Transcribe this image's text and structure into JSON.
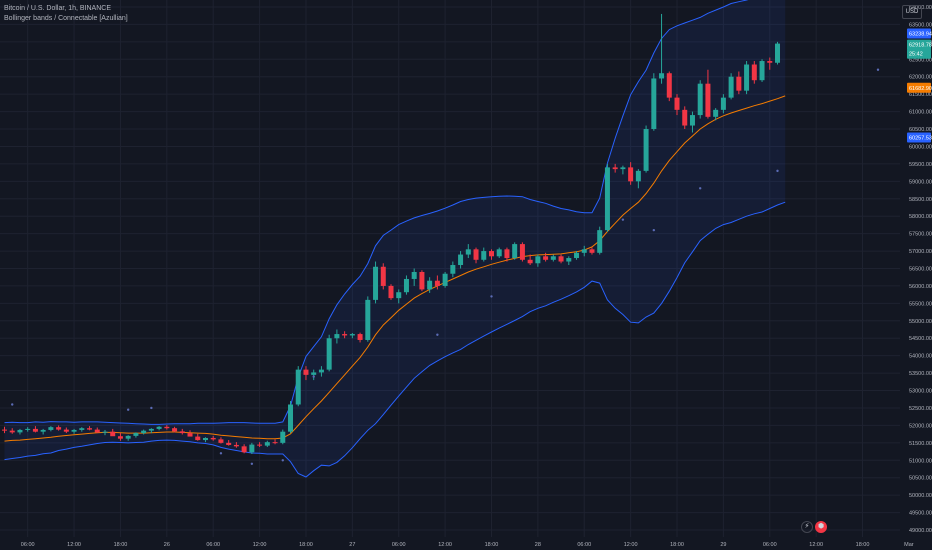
{
  "legend": {
    "title": "Bitcoin / U.S. Dollar, 1h, BINANCE",
    "indicator": "Bollinger bands / Connectable [Azullian]"
  },
  "currency": "USD",
  "controls": {
    "flash_glyph": "⚡",
    "logo_glyph": "⬢"
  },
  "colors": {
    "up": "#26a69a",
    "down": "#f23645",
    "band": "#2962ff",
    "basis": "#f57c00",
    "fill": "#2962ff",
    "dots": "#5b6bb5",
    "grid": "#1e2230"
  },
  "chart_data": {
    "type": "candlestick",
    "ylim": [
      48800,
      64200
    ],
    "y_ticks": [
      49000,
      49500,
      50000,
      50500,
      51000,
      51500,
      52000,
      52500,
      53000,
      53500,
      54000,
      54500,
      55000,
      55500,
      56000,
      56500,
      57000,
      57500,
      58000,
      58500,
      59000,
      59500,
      60000,
      60500,
      61000,
      61500,
      62000,
      62500,
      63000,
      63500,
      64000
    ],
    "y_tick_labels": [
      "49000.00",
      "49500.00",
      "50000.00",
      "50500.00",
      "51000.00",
      "51500.00",
      "52000.00",
      "52500.00",
      "53000.00",
      "53500.00",
      "54000.00",
      "54500.00",
      "55000.00",
      "55500.00",
      "56000.00",
      "56500.00",
      "57000.00",
      "57500.00",
      "58000.00",
      "58500.00",
      "59000.00",
      "59500.00",
      "60000.00",
      "60500.00",
      "61000.00",
      "61500.00",
      "62000.00",
      "62500.00",
      "63000.00",
      "63500.00",
      "64000.00"
    ],
    "x_labels": [
      {
        "label": "06:00",
        "bar": 3
      },
      {
        "label": "12:00",
        "bar": 9
      },
      {
        "label": "18:00",
        "bar": 15
      },
      {
        "label": "26",
        "bar": 21
      },
      {
        "label": "06:00",
        "bar": 27
      },
      {
        "label": "12:00",
        "bar": 33
      },
      {
        "label": "18:00",
        "bar": 39
      },
      {
        "label": "27",
        "bar": 45
      },
      {
        "label": "06:00",
        "bar": 51
      },
      {
        "label": "12:00",
        "bar": 57
      },
      {
        "label": "18:00",
        "bar": 63
      },
      {
        "label": "28",
        "bar": 69
      },
      {
        "label": "06:00",
        "bar": 75
      },
      {
        "label": "12:00",
        "bar": 81
      },
      {
        "label": "18:00",
        "bar": 87
      },
      {
        "label": "29",
        "bar": 93
      },
      {
        "label": "06:00",
        "bar": 99
      },
      {
        "label": "12:00",
        "bar": 105
      },
      {
        "label": "18:00",
        "bar": 111
      },
      {
        "label": "Mar",
        "bar": 117
      }
    ],
    "candles_ohlc": [
      [
        51880,
        51960,
        51780,
        51850
      ],
      [
        51850,
        51920,
        51760,
        51800
      ],
      [
        51800,
        51900,
        51740,
        51870
      ],
      [
        51870,
        51950,
        51820,
        51900
      ],
      [
        51900,
        51980,
        51800,
        51820
      ],
      [
        51820,
        51900,
        51740,
        51870
      ],
      [
        51870,
        51980,
        51830,
        51950
      ],
      [
        51950,
        52000,
        51850,
        51880
      ],
      [
        51880,
        51940,
        51780,
        51820
      ],
      [
        51820,
        51900,
        51760,
        51870
      ],
      [
        51870,
        51950,
        51820,
        51920
      ],
      [
        51920,
        51980,
        51860,
        51880
      ],
      [
        51880,
        51940,
        51780,
        51800
      ],
      [
        51800,
        51870,
        51720,
        51820
      ],
      [
        51820,
        51900,
        51760,
        51690
      ],
      [
        51690,
        51780,
        51560,
        51620
      ],
      [
        51620,
        51720,
        51560,
        51700
      ],
      [
        51700,
        51800,
        51650,
        51780
      ],
      [
        51780,
        51880,
        51740,
        51850
      ],
      [
        51850,
        51920,
        51780,
        51900
      ],
      [
        51900,
        51980,
        51860,
        51960
      ],
      [
        51960,
        52010,
        51880,
        51920
      ],
      [
        51920,
        51960,
        51800,
        51830
      ],
      [
        51830,
        51900,
        51740,
        51780
      ],
      [
        51780,
        51860,
        51700,
        51680
      ],
      [
        51680,
        51760,
        51560,
        51580
      ],
      [
        51580,
        51660,
        51520,
        51640
      ],
      [
        51640,
        51700,
        51560,
        51600
      ],
      [
        51600,
        51660,
        51480,
        51500
      ],
      [
        51500,
        51580,
        51420,
        51440
      ],
      [
        51440,
        51520,
        51360,
        51400
      ],
      [
        51400,
        51460,
        51200,
        51230
      ],
      [
        51230,
        51500,
        51180,
        51450
      ],
      [
        51450,
        51520,
        51380,
        51420
      ],
      [
        51420,
        51560,
        51380,
        51520
      ],
      [
        51520,
        51600,
        51460,
        51500
      ],
      [
        51500,
        51880,
        51460,
        51820
      ],
      [
        51820,
        52700,
        51780,
        52600
      ],
      [
        52600,
        53700,
        52550,
        53600
      ],
      [
        53600,
        53700,
        53300,
        53450
      ],
      [
        53450,
        53600,
        53300,
        53520
      ],
      [
        53520,
        53700,
        53400,
        53600
      ],
      [
        53600,
        54600,
        53550,
        54500
      ],
      [
        54500,
        54750,
        54350,
        54620
      ],
      [
        54620,
        54700,
        54500,
        54580
      ],
      [
        54580,
        54650,
        54500,
        54620
      ],
      [
        54620,
        54660,
        54380,
        54450
      ],
      [
        54450,
        55700,
        54400,
        55600
      ],
      [
        55600,
        56700,
        55500,
        56550
      ],
      [
        56550,
        56650,
        55900,
        56000
      ],
      [
        56000,
        56050,
        55600,
        55650
      ],
      [
        55650,
        55900,
        55500,
        55820
      ],
      [
        55820,
        56300,
        55750,
        56200
      ],
      [
        56200,
        56500,
        56000,
        56400
      ],
      [
        56400,
        56450,
        55850,
        55900
      ],
      [
        55900,
        56250,
        55800,
        56150
      ],
      [
        56150,
        56300,
        55900,
        56000
      ],
      [
        56000,
        56400,
        55950,
        56350
      ],
      [
        56350,
        56700,
        56250,
        56600
      ],
      [
        56600,
        57000,
        56500,
        56900
      ],
      [
        56900,
        57200,
        56800,
        57050
      ],
      [
        57050,
        57100,
        56650,
        56750
      ],
      [
        56750,
        57100,
        56700,
        57000
      ],
      [
        57000,
        57050,
        56750,
        56850
      ],
      [
        56850,
        57100,
        56800,
        57050
      ],
      [
        57050,
        57100,
        56700,
        56800
      ],
      [
        56800,
        57250,
        56750,
        57200
      ],
      [
        57200,
        57250,
        56700,
        56750
      ],
      [
        56750,
        56900,
        56600,
        56650
      ],
      [
        56650,
        56900,
        56550,
        56850
      ],
      [
        56850,
        56950,
        56700,
        56750
      ],
      [
        56750,
        56900,
        56700,
        56850
      ],
      [
        56850,
        56900,
        56650,
        56700
      ],
      [
        56700,
        56850,
        56600,
        56800
      ],
      [
        56800,
        57000,
        56750,
        56950
      ],
      [
        56950,
        57150,
        56850,
        57050
      ],
      [
        57050,
        57100,
        56900,
        56950
      ],
      [
        56950,
        57700,
        56900,
        57600
      ],
      [
        57600,
        59500,
        57550,
        59400
      ],
      [
        59400,
        59500,
        59250,
        59350
      ],
      [
        59350,
        59450,
        59200,
        59400
      ],
      [
        59400,
        59550,
        58900,
        59000
      ],
      [
        59000,
        59350,
        58800,
        59300
      ],
      [
        59300,
        60600,
        59250,
        60500
      ],
      [
        60500,
        62100,
        60450,
        61950
      ],
      [
        61950,
        63800,
        61800,
        62100
      ],
      [
        62100,
        62150,
        61300,
        61400
      ],
      [
        61400,
        61500,
        60900,
        61050
      ],
      [
        61050,
        61150,
        60500,
        60600
      ],
      [
        60600,
        61000,
        60400,
        60900
      ],
      [
        60900,
        61900,
        60800,
        61800
      ],
      [
        61800,
        62200,
        60800,
        60850
      ],
      [
        60850,
        61100,
        60750,
        61050
      ],
      [
        61050,
        61500,
        60950,
        61400
      ],
      [
        61400,
        62100,
        61350,
        62000
      ],
      [
        62000,
        62150,
        61500,
        61600
      ],
      [
        61600,
        62450,
        61500,
        62350
      ],
      [
        62350,
        62450,
        61800,
        61900
      ],
      [
        61900,
        62500,
        61850,
        62450
      ],
      [
        62450,
        62550,
        62200,
        62400
      ],
      [
        62400,
        63000,
        62350,
        62950
      ]
    ],
    "bollinger": {
      "upper": [
        52080,
        52090,
        52080,
        52080,
        52100,
        52090,
        52110,
        52100,
        52100,
        52090,
        52100,
        52100,
        52100,
        52090,
        52080,
        52070,
        52060,
        52050,
        52040,
        52030,
        52030,
        52040,
        52050,
        52050,
        52050,
        52060,
        52060,
        52060,
        52070,
        52080,
        52080,
        52080,
        52070,
        52060,
        52060,
        52060,
        52100,
        52560,
        53380,
        53980,
        54260,
        54540,
        55060,
        55460,
        55770,
        56040,
        56280,
        56640,
        57150,
        57450,
        57600,
        57760,
        57860,
        57950,
        58020,
        58080,
        58150,
        58230,
        58320,
        58420,
        58480,
        58520,
        58540,
        58560,
        58570,
        58580,
        58570,
        58560,
        58480,
        58420,
        58370,
        58290,
        58220,
        58180,
        58130,
        58100,
        58100,
        58520,
        59520,
        60240,
        60880,
        61480,
        61860,
        62190,
        62680,
        63100,
        63350,
        63460,
        63540,
        63620,
        63700,
        63820,
        63910,
        64000,
        64100,
        64150,
        64200,
        64270,
        64340,
        64380,
        64420,
        64500
      ],
      "basis": [
        51550,
        51570,
        51580,
        51600,
        51620,
        51640,
        51660,
        51690,
        51710,
        51730,
        51750,
        51770,
        51790,
        51800,
        51800,
        51790,
        51780,
        51780,
        51780,
        51790,
        51800,
        51810,
        51810,
        51800,
        51790,
        51780,
        51770,
        51750,
        51720,
        51700,
        51680,
        51660,
        51640,
        51630,
        51620,
        51620,
        51640,
        51760,
        52000,
        52250,
        52480,
        52700,
        52950,
        53200,
        53450,
        53700,
        53950,
        54250,
        54600,
        54880,
        55090,
        55300,
        55480,
        55650,
        55780,
        55900,
        56000,
        56100,
        56200,
        56300,
        56400,
        56480,
        56550,
        56620,
        56680,
        56740,
        56790,
        56840,
        56870,
        56890,
        56900,
        56910,
        56920,
        56950,
        56980,
        57030,
        57120,
        57300,
        57560,
        57800,
        58030,
        58220,
        58400,
        58650,
        58950,
        59300,
        59600,
        59850,
        60100,
        60300,
        60500,
        60650,
        60780,
        60880,
        60960,
        61030,
        61100,
        61170,
        61230,
        61300,
        61370,
        61450
      ],
      "lower": [
        51020,
        51050,
        51080,
        51120,
        51140,
        51190,
        51210,
        51280,
        51320,
        51370,
        51400,
        51440,
        51480,
        51510,
        51520,
        51510,
        51500,
        51510,
        51520,
        51550,
        51570,
        51580,
        51570,
        51550,
        51530,
        51500,
        51480,
        51440,
        51370,
        51320,
        51280,
        51240,
        51210,
        51200,
        51180,
        51180,
        51180,
        50960,
        50620,
        50520,
        50700,
        50860,
        50840,
        50940,
        51130,
        51360,
        51620,
        51860,
        52050,
        52310,
        52580,
        52840,
        53100,
        53350,
        53540,
        53720,
        53850,
        53970,
        54080,
        54180,
        54320,
        54440,
        54560,
        54680,
        54790,
        54900,
        55010,
        55120,
        55260,
        55360,
        55430,
        55530,
        55620,
        55720,
        55830,
        55960,
        56140,
        56080,
        55600,
        55360,
        55180,
        54960,
        54940,
        55110,
        55220,
        55500,
        55850,
        56240,
        56660,
        56980,
        57300,
        57480,
        57650,
        57760,
        57820,
        57910,
        58000,
        58070,
        58120,
        58220,
        58320,
        58400
      ]
    },
    "dots": [
      [
        1,
        52600
      ],
      [
        16,
        52450
      ],
      [
        19,
        52500
      ],
      [
        28,
        51200
      ],
      [
        32,
        50900
      ],
      [
        36,
        51000
      ],
      [
        40,
        53400
      ],
      [
        56,
        54600
      ],
      [
        63,
        55700
      ],
      [
        80,
        57900
      ],
      [
        84,
        57600
      ],
      [
        90,
        58800
      ],
      [
        100,
        59300
      ],
      [
        113,
        62200
      ]
    ],
    "price_labels": [
      {
        "text": "63238.94",
        "value": 63238.94,
        "color": "#2962ff"
      },
      {
        "text": "62918.78",
        "value": 62918.78,
        "color": "#26a69a"
      },
      {
        "text": "25:42",
        "value": 62660,
        "color": "#26a69a"
      },
      {
        "text": "61682.90",
        "value": 61682.9,
        "color": "#f57c00"
      },
      {
        "text": "60257.53",
        "value": 60257.53,
        "color": "#2962ff"
      }
    ]
  }
}
